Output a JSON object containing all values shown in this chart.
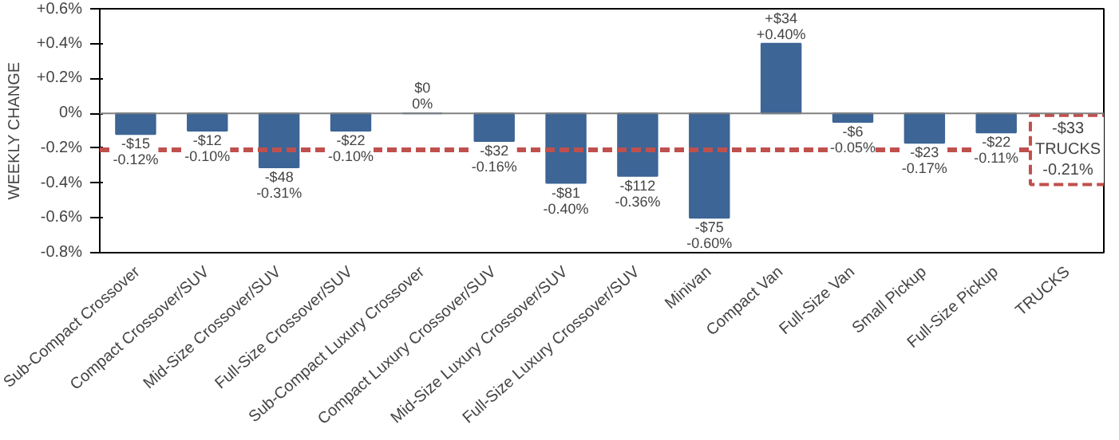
{
  "chart_data": {
    "type": "bar",
    "ylabel": "WEEKLY CHANGE",
    "categories": [
      "Sub-Compact Crossover",
      "Compact Crossover/SUV",
      "Mid-Size Crossover/SUV",
      "Full-Size Crossover/SUV",
      "Sub-Compact Luxury Crossover",
      "Compact Luxury Crossover/SUV",
      "Mid-Size Luxury Crossover/SUV",
      "Full-Size Luxury Crossover/SUV",
      "Minivan",
      "Compact Van",
      "Full-Size Van",
      "Small Pickup",
      "Full-Size Pickup",
      "TRUCKS"
    ],
    "values": [
      -0.12,
      -0.1,
      -0.31,
      -0.1,
      0,
      -0.16,
      -0.4,
      -0.36,
      -0.6,
      0.4,
      -0.05,
      -0.17,
      -0.11,
      null
    ],
    "value_labels": [
      "-$15\n-0.12%",
      "-$12\n-0.10%",
      "-$48\n-0.31%",
      "-$22\n-0.10%",
      "$0\n0%",
      "-$32\n-0.16%",
      "-$81\n-0.40%",
      "-$112\n-0.36%",
      "-$75\n-0.60%",
      "+$34\n+0.40%",
      "-$6\n-0.05%",
      "-$23\n-0.17%",
      "-$22\n-0.11%",
      null
    ],
    "color": "#3d6596",
    "ylim": [
      -0.8,
      0.6
    ],
    "yticks": [
      {
        "value": -0.8,
        "label": "-0.8%"
      },
      {
        "value": -0.6,
        "label": "-0.6%"
      },
      {
        "value": -0.4,
        "label": "-0.4%"
      },
      {
        "value": -0.2,
        "label": "-0.2%"
      },
      {
        "value": 0,
        "label": "0%"
      },
      {
        "value": 0.2,
        "label": "+0.2%"
      },
      {
        "value": 0.4,
        "label": "+0.4%"
      },
      {
        "value": 0.6,
        "label": "+0.6%"
      }
    ],
    "ref_lines": [
      {
        "axis": "y",
        "value": -0.21,
        "label": "-$33\nTRUCKS\n-0.21%",
        "color": "#c0504d",
        "line_style": "dashed"
      }
    ]
  }
}
